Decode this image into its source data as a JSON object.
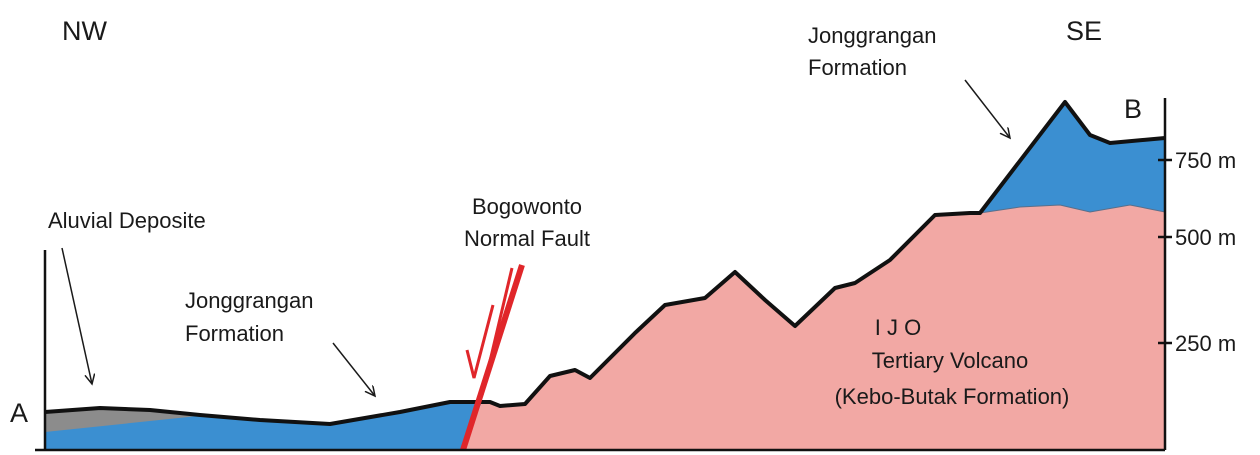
{
  "direction_left": "NW",
  "direction_right": "SE",
  "point_start": "A",
  "point_end": "B",
  "labels": {
    "aluvial": [
      "Aluvial Deposite"
    ],
    "jonggrangan_left": [
      "Jonggrangan",
      "Formation"
    ],
    "fault": [
      "Bogowonto",
      "Normal Fault"
    ],
    "jonggrangan_right": [
      "Jonggrangan",
      "Formation"
    ],
    "volcano": [
      "I J O",
      "Tertiary Volcano",
      "(Kebo-Butak Formation)"
    ]
  },
  "scale_labels": [
    "750 m",
    "500 m",
    "250 m"
  ]
}
